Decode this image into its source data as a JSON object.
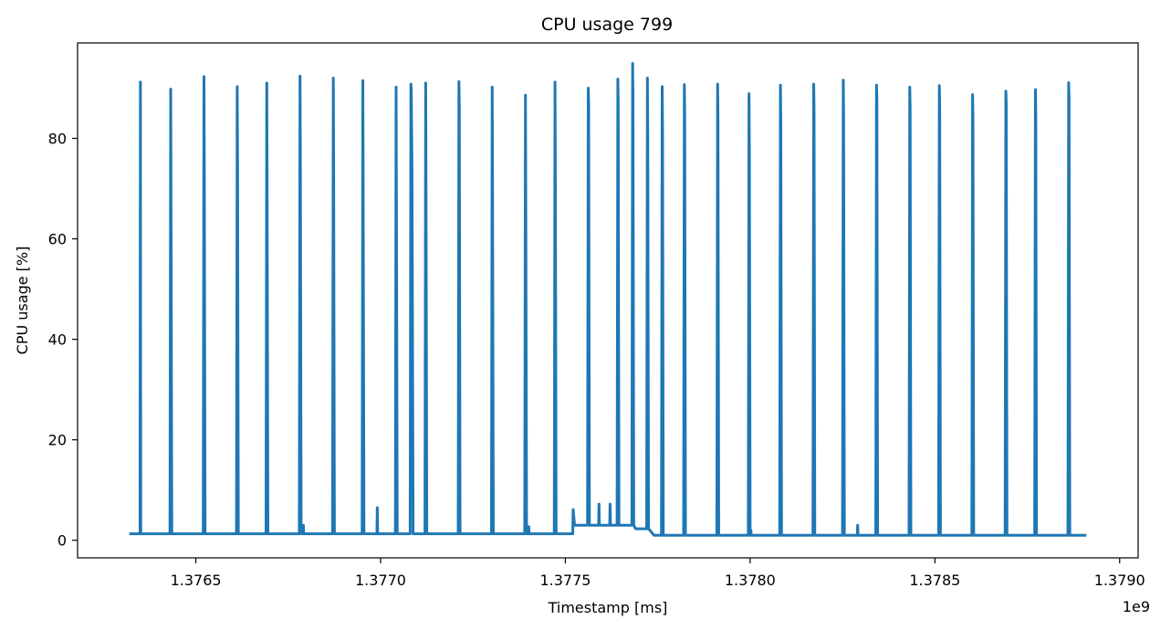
{
  "chart_data": {
    "type": "line",
    "title": "CPU usage 799",
    "xlabel": "Timestamp [ms]",
    "ylabel": "CPU usage [%]",
    "x_offset_label": "1e9",
    "xlim": [
      1.37618,
      1.37905
    ],
    "ylim": [
      -3.5,
      99
    ],
    "x_ticks": [
      1.3765,
      1.377,
      1.3775,
      1.378,
      1.3785,
      1.379
    ],
    "x_tick_labels": [
      "1.3765",
      "1.3770",
      "1.3775",
      "1.3780",
      "1.3785",
      "1.3790"
    ],
    "y_ticks": [
      0,
      20,
      40,
      60,
      80
    ],
    "y_tick_labels": [
      "0",
      "20",
      "40",
      "60",
      "80"
    ],
    "grid": false,
    "color": "#1f77b4",
    "series": [
      {
        "x": [
          1.37632,
          1.376349,
          1.37635,
          1.376351,
          1.37643,
          1.376432,
          1.376433,
          1.376435,
          1.37652,
          1.376522,
          1.376523,
          1.376525,
          1.37661,
          1.376612,
          1.376613,
          1.376615,
          1.37669,
          1.376692,
          1.376693,
          1.376695,
          1.37678,
          1.376782,
          1.376783,
          1.376785,
          1.37679,
          1.376791,
          1.376792,
          1.37687,
          1.376872,
          1.376873,
          1.376875,
          1.37695,
          1.376952,
          1.376953,
          1.376955,
          1.37699,
          1.376991,
          1.376992,
          1.37704,
          1.377042,
          1.377043,
          1.377045,
          1.37708,
          1.377082,
          1.377083,
          1.377085,
          1.377088,
          1.37712,
          1.377122,
          1.377123,
          1.377125,
          1.37721,
          1.377212,
          1.377213,
          1.377215,
          1.3773,
          1.377302,
          1.377303,
          1.377305,
          1.37739,
          1.377392,
          1.377393,
          1.377395,
          1.3774,
          1.377401,
          1.377402,
          1.37747,
          1.377472,
          1.377473,
          1.377475,
          1.37752,
          1.377521,
          1.377525,
          1.377526,
          1.37756,
          1.377562,
          1.377563,
          1.377565,
          1.37759,
          1.377591,
          1.377592,
          1.37762,
          1.377621,
          1.377622,
          1.37764,
          1.377642,
          1.377643,
          1.377645,
          1.37768,
          1.377682,
          1.377683,
          1.377685,
          1.37769,
          1.37772,
          1.377722,
          1.377723,
          1.377725,
          1.37774,
          1.37776,
          1.377762,
          1.377763,
          1.377765,
          1.37782,
          1.377822,
          1.377823,
          1.377825,
          1.37791,
          1.377912,
          1.377913,
          1.377915,
          1.377995,
          1.377997,
          1.377998,
          1.378,
          1.378002,
          1.378003,
          1.37808,
          1.378082,
          1.378083,
          1.378085,
          1.37817,
          1.378172,
          1.378173,
          1.378175,
          1.37825,
          1.378252,
          1.378253,
          1.378255,
          1.37829,
          1.378291,
          1.378292,
          1.37834,
          1.378342,
          1.378343,
          1.378345,
          1.37843,
          1.378432,
          1.378433,
          1.378435,
          1.37851,
          1.378512,
          1.378513,
          1.378515,
          1.3786,
          1.378602,
          1.378603,
          1.378605,
          1.37869,
          1.378692,
          1.378693,
          1.378695,
          1.37877,
          1.378772,
          1.378773,
          1.378775,
          1.37886,
          1.378862,
          1.378863,
          1.378865,
          1.37891
        ],
        "y": [
          1.3,
          1.3,
          91.2,
          1.3,
          1.3,
          89.8,
          62,
          1.3,
          1.3,
          92.3,
          73.5,
          1.3,
          1.3,
          90.3,
          73.8,
          1.3,
          1.3,
          91.0,
          67.0,
          1.3,
          1.3,
          92.4,
          73.0,
          1.3,
          1.3,
          3.0,
          1.3,
          1.3,
          92.0,
          73.0,
          1.3,
          1.3,
          91.5,
          66.0,
          1.3,
          1.3,
          6.5,
          1.3,
          1.3,
          90.2,
          63.0,
          1.3,
          1.3,
          90.8,
          89.5,
          74.0,
          1.3,
          1.3,
          91.0,
          69.0,
          1.3,
          1.3,
          91.3,
          86.0,
          1.3,
          1.3,
          90.2,
          69.0,
          1.3,
          1.3,
          88.6,
          64.0,
          1.3,
          1.3,
          2.7,
          1.3,
          1.3,
          91.2,
          70.0,
          1.3,
          1.3,
          6.1,
          3.0,
          3.0,
          3.0,
          90.0,
          87.0,
          3.0,
          3.0,
          7.2,
          3.0,
          3.0,
          7.2,
          3.0,
          3.0,
          91.8,
          87.0,
          3.0,
          3.0,
          94.9,
          88.0,
          3.0,
          2.3,
          2.3,
          92.0,
          80.0,
          2.3,
          1.0,
          1.0,
          90.3,
          81.0,
          1.0,
          1.0,
          90.7,
          84.0,
          1.0,
          1.0,
          90.8,
          84.0,
          1.0,
          1.0,
          88.9,
          76.0,
          1.0,
          2.0,
          1.0,
          1.0,
          90.6,
          83.0,
          1.0,
          1.0,
          90.8,
          86.0,
          1.0,
          1.0,
          91.6,
          85.0,
          1.0,
          1.0,
          3.0,
          1.0,
          1.0,
          90.6,
          88.0,
          1.0,
          1.0,
          90.2,
          86.0,
          1.0,
          1.0,
          90.5,
          86.0,
          1.0,
          1.0,
          88.7,
          84.0,
          1.0,
          1.0,
          89.4,
          87.0,
          1.0,
          1.0,
          89.7,
          85.0,
          1.0,
          1.0,
          91.1,
          88.0,
          1.0,
          1.0
        ]
      }
    ]
  }
}
